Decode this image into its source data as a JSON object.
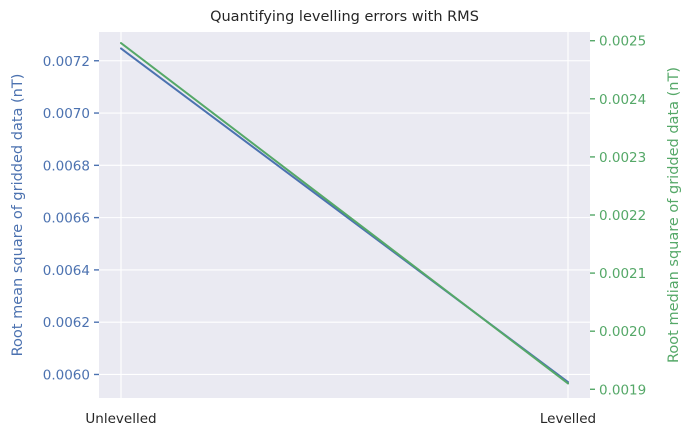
{
  "chart_data": {
    "type": "line",
    "title": "Quantifying levelling errors with RMS",
    "categories": [
      "Unlevelled",
      "Levelled"
    ],
    "y_left": {
      "label": "Root mean square of gridded data (nT)",
      "color": "#4c72b0",
      "ylim": [
        0.00591,
        0.00731
      ],
      "ticks": [
        "0.0060",
        "0.0062",
        "0.0064",
        "0.0066",
        "0.0068",
        "0.0070",
        "0.0072"
      ],
      "tick_values": [
        0.006,
        0.0062,
        0.0064,
        0.0066,
        0.0068,
        0.007,
        0.0072
      ]
    },
    "y_right": {
      "label": "Root median square of gridded data (nT)",
      "color": "#55a868",
      "ylim": [
        0.001885,
        0.002515
      ],
      "ticks": [
        "0.0019",
        "0.0020",
        "0.0021",
        "0.0022",
        "0.0023",
        "0.0024",
        "0.0025"
      ],
      "tick_values": [
        0.0019,
        0.002,
        0.0021,
        0.0022,
        0.0023,
        0.0024,
        0.0025
      ]
    },
    "series": [
      {
        "axis": "left",
        "color": "#4c72b0",
        "values": [
          0.007247,
          0.005971
        ]
      },
      {
        "axis": "right",
        "color": "#55a868",
        "values": [
          0.002496,
          0.00191
        ]
      }
    ],
    "grid": true,
    "background": "#eaeaf2"
  }
}
